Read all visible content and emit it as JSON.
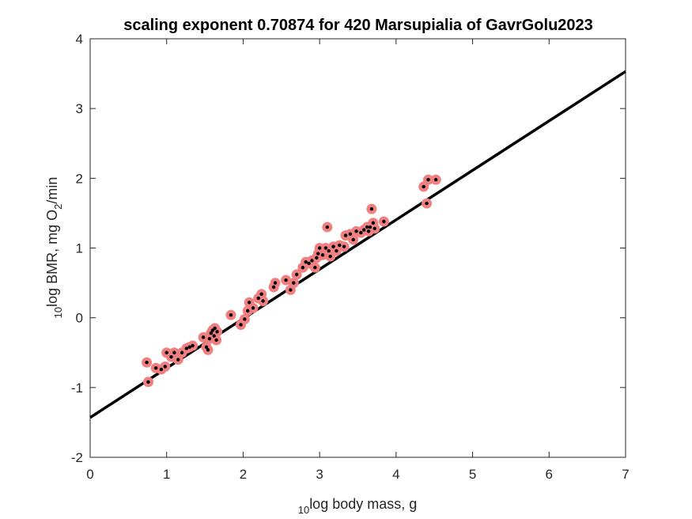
{
  "chart_data": {
    "type": "scatter",
    "title": "scaling exponent 0.70874 for 420 Marsupialia of GavrGolu2023",
    "xlabel": {
      "prefix": "10",
      "main": "log body mass, g"
    },
    "ylabel": {
      "prefix": "10",
      "main": "log BMR, mg O",
      "sub": "2",
      "suffix": "/min"
    },
    "xlim": [
      0,
      7
    ],
    "ylim": [
      -2,
      4
    ],
    "xticks": [
      0,
      1,
      2,
      3,
      4,
      5,
      6,
      7
    ],
    "yticks": [
      -2,
      -1,
      0,
      1,
      2,
      3,
      4
    ],
    "xtick_labels": [
      "0",
      "1",
      "2",
      "3",
      "4",
      "5",
      "6",
      "7"
    ],
    "ytick_labels": [
      "-2",
      "-1",
      "0",
      "1",
      "2",
      "3",
      "4"
    ],
    "grid": false,
    "fit_line": {
      "slope": 0.70874,
      "intercept": -1.43,
      "color": "#000000"
    },
    "marker_outer_color": "#f08080",
    "marker_inner_color": "#000000",
    "points": [
      [
        0.74,
        -0.64
      ],
      [
        0.76,
        -0.92
      ],
      [
        0.86,
        -0.72
      ],
      [
        0.93,
        -0.74
      ],
      [
        0.98,
        -0.7
      ],
      [
        1.0,
        -0.5
      ],
      [
        1.06,
        -0.56
      ],
      [
        1.1,
        -0.5
      ],
      [
        1.15,
        -0.6
      ],
      [
        1.2,
        -0.5
      ],
      [
        1.26,
        -0.44
      ],
      [
        1.3,
        -0.42
      ],
      [
        1.34,
        -0.4
      ],
      [
        1.48,
        -0.28
      ],
      [
        1.52,
        -0.42
      ],
      [
        1.54,
        -0.46
      ],
      [
        1.56,
        -0.3
      ],
      [
        1.58,
        -0.22
      ],
      [
        1.6,
        -0.18
      ],
      [
        1.62,
        -0.26
      ],
      [
        1.63,
        -0.15
      ],
      [
        1.65,
        -0.32
      ],
      [
        1.66,
        -0.2
      ],
      [
        1.84,
        0.04
      ],
      [
        1.97,
        -0.1
      ],
      [
        2.02,
        -0.02
      ],
      [
        2.06,
        0.1
      ],
      [
        2.08,
        0.22
      ],
      [
        2.13,
        0.14
      ],
      [
        2.2,
        0.28
      ],
      [
        2.24,
        0.34
      ],
      [
        2.26,
        0.24
      ],
      [
        2.4,
        0.44
      ],
      [
        2.42,
        0.5
      ],
      [
        2.56,
        0.54
      ],
      [
        2.62,
        0.4
      ],
      [
        2.66,
        0.5
      ],
      [
        2.7,
        0.62
      ],
      [
        2.78,
        0.72
      ],
      [
        2.82,
        0.8
      ],
      [
        2.86,
        0.78
      ],
      [
        2.9,
        0.82
      ],
      [
        2.94,
        0.72
      ],
      [
        2.96,
        0.86
      ],
      [
        2.98,
        0.92
      ],
      [
        3.0,
        1.0
      ],
      [
        3.04,
        0.9
      ],
      [
        3.08,
        1.0
      ],
      [
        3.1,
        1.3
      ],
      [
        3.12,
        0.96
      ],
      [
        3.14,
        0.88
      ],
      [
        3.18,
        1.02
      ],
      [
        3.22,
        0.96
      ],
      [
        3.26,
        1.04
      ],
      [
        3.32,
        1.02
      ],
      [
        3.34,
        1.18
      ],
      [
        3.4,
        1.2
      ],
      [
        3.44,
        1.12
      ],
      [
        3.48,
        1.24
      ],
      [
        3.54,
        1.22
      ],
      [
        3.58,
        1.26
      ],
      [
        3.62,
        1.3
      ],
      [
        3.64,
        1.24
      ],
      [
        3.66,
        1.3
      ],
      [
        3.68,
        1.56
      ],
      [
        3.7,
        1.36
      ],
      [
        3.72,
        1.28
      ],
      [
        3.84,
        1.38
      ],
      [
        4.36,
        1.88
      ],
      [
        4.4,
        1.64
      ],
      [
        4.42,
        1.98
      ],
      [
        4.52,
        1.98
      ]
    ]
  }
}
